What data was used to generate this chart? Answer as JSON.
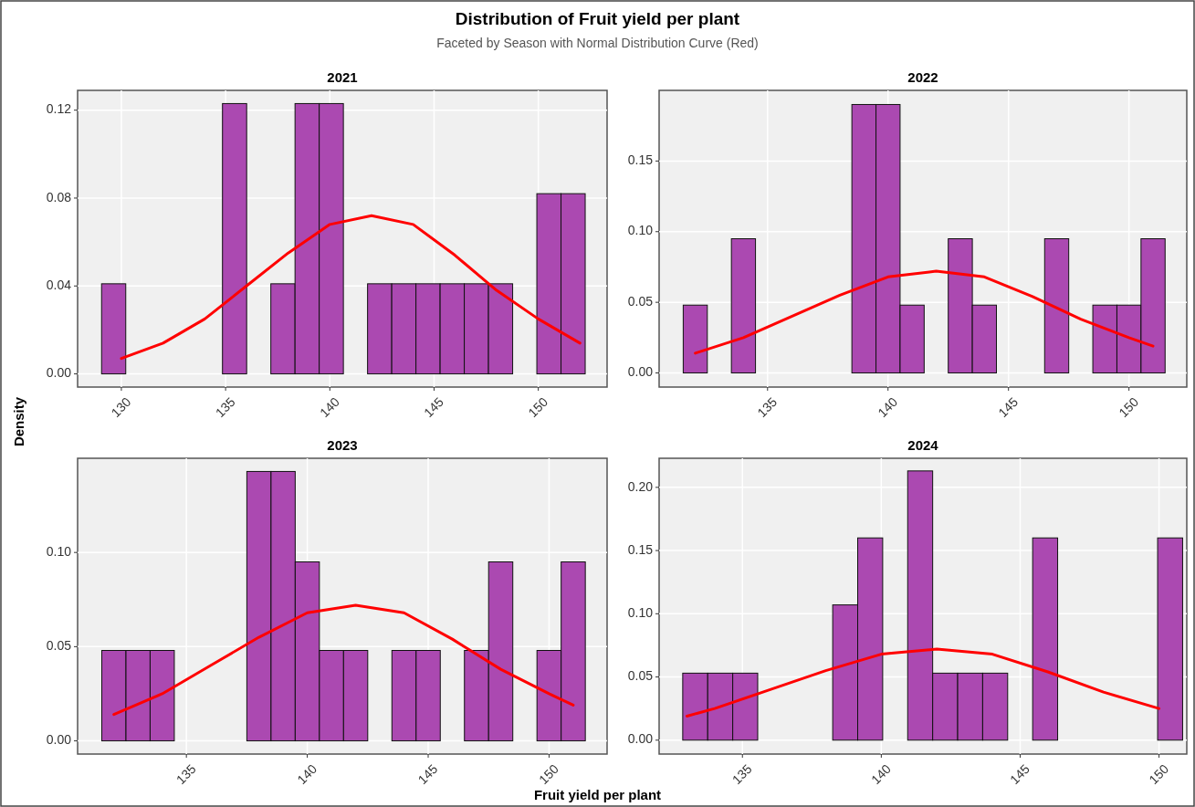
{
  "chart_data": [
    {
      "type": "histogram",
      "title": "2021",
      "ylabel": "Density",
      "annotations": [
        "Distribution of Fruit yield per plant",
        "Faceted by Season with Normal Distribution Curve (Red)"
      ],
      "bins": [
        129.05,
        130.21,
        131.37,
        132.53,
        133.69,
        134.85,
        136.01,
        137.17,
        138.33,
        139.49,
        140.65,
        141.81,
        142.97,
        144.13,
        145.29,
        146.45,
        147.61,
        148.77,
        149.93,
        151.09,
        152.25
      ],
      "series": [
        {
          "color": "#a63fad",
          "values": [
            0.041,
            0,
            0,
            0,
            0,
            0.123,
            0,
            0.041,
            0.123,
            0.123,
            0,
            0.041,
            0.041,
            0.041,
            0.041,
            0.041,
            0.041,
            0,
            0.082,
            0.082
          ]
        },
        {
          "type": "line",
          "color": "#ff0000",
          "x": [
            130,
            132,
            134,
            136,
            138,
            140,
            142,
            144,
            146,
            148,
            150,
            152
          ],
          "values": [
            0.007,
            0.014,
            0.025,
            0.04,
            0.055,
            0.068,
            0.072,
            0.068,
            0.054,
            0.038,
            0.025,
            0.014
          ]
        }
      ],
      "xlim": [
        127.9,
        153.3
      ],
      "ylim": [
        -0.006,
        0.129
      ],
      "xticks": [
        130,
        135,
        140,
        145,
        150
      ],
      "yticks": [
        {
          "value": 0,
          "label": "0.00"
        },
        {
          "value": 0.04,
          "label": "0.04"
        },
        {
          "value": 0.08,
          "label": "0.08"
        },
        {
          "value": 0.12,
          "label": "0.12"
        }
      ],
      "grid": true
    },
    {
      "type": "histogram",
      "title": "2022",
      "bins": [
        131.5,
        132.5,
        133.5,
        134.5,
        135.5,
        136.5,
        137.5,
        138.5,
        139.5,
        140.5,
        141.5,
        142.5,
        143.5,
        144.5,
        145.5,
        146.5,
        147.5,
        148.5,
        149.5,
        150.5,
        151.5
      ],
      "series": [
        {
          "color": "#a63fad",
          "values": [
            0.048,
            0,
            0.095,
            0,
            0,
            0,
            0,
            0.19,
            0.19,
            0.048,
            0,
            0.095,
            0.048,
            0,
            0,
            0.095,
            0,
            0.048,
            0.048,
            0.095
          ]
        },
        {
          "type": "line",
          "color": "#ff0000",
          "x": [
            132,
            134,
            136,
            138,
            140,
            142,
            144,
            146,
            148,
            150,
            151
          ],
          "values": [
            0.014,
            0.025,
            0.04,
            0.055,
            0.068,
            0.072,
            0.068,
            0.054,
            0.038,
            0.025,
            0.019
          ]
        }
      ],
      "xlim": [
        130.5,
        152.4
      ],
      "ylim": [
        -0.01,
        0.2
      ],
      "xticks": [
        135,
        140,
        145,
        150
      ],
      "yticks": [
        {
          "value": 0,
          "label": "0.00"
        },
        {
          "value": 0.05,
          "label": "0.05"
        },
        {
          "value": 0.1,
          "label": "0.10"
        },
        {
          "value": 0.15,
          "label": "0.15"
        }
      ],
      "grid": true
    },
    {
      "type": "histogram",
      "title": "2023",
      "xlabel": "Fruit yield per plant",
      "bins": [
        131.5,
        132.5,
        133.5,
        134.5,
        135.5,
        136.5,
        137.5,
        138.5,
        139.5,
        140.5,
        141.5,
        142.5,
        143.5,
        144.5,
        145.5,
        146.5,
        147.5,
        148.5,
        149.5,
        150.5,
        151.5
      ],
      "series": [
        {
          "color": "#a63fad",
          "values": [
            0.048,
            0.048,
            0.048,
            0,
            0,
            0,
            0.143,
            0.143,
            0.095,
            0.048,
            0.048,
            0,
            0.048,
            0.048,
            0,
            0.048,
            0.095,
            0,
            0.048,
            0.095
          ]
        },
        {
          "type": "line",
          "color": "#ff0000",
          "x": [
            132,
            134,
            136,
            138,
            140,
            142,
            144,
            146,
            148,
            150,
            151
          ],
          "values": [
            0.014,
            0.025,
            0.04,
            0.055,
            0.068,
            0.072,
            0.068,
            0.054,
            0.038,
            0.025,
            0.019
          ]
        }
      ],
      "xlim": [
        130.5,
        152.4
      ],
      "ylim": [
        -0.007,
        0.15
      ],
      "xticks": [
        135,
        140,
        145,
        150
      ],
      "yticks": [
        {
          "value": 0,
          "label": "0.00"
        },
        {
          "value": 0.05,
          "label": "0.05"
        },
        {
          "value": 0.1,
          "label": "0.10"
        }
      ],
      "grid": true
    },
    {
      "type": "histogram",
      "title": "2024",
      "bins": [
        132.85,
        133.75,
        134.65,
        135.55,
        136.45,
        137.35,
        138.25,
        139.15,
        140.05,
        140.95,
        141.85,
        142.75,
        143.65,
        144.55,
        145.45,
        146.35,
        147.25,
        148.15,
        149.05,
        149.95,
        150.85
      ],
      "series": [
        {
          "color": "#a63fad",
          "values": [
            0.053,
            0.053,
            0.053,
            0,
            0,
            0,
            0.107,
            0.16,
            0,
            0.213,
            0.053,
            0.053,
            0.053,
            0,
            0.16,
            0,
            0,
            0,
            0,
            0.16
          ]
        },
        {
          "type": "line",
          "color": "#ff0000",
          "x": [
            133,
            134,
            136,
            138,
            140,
            142,
            144,
            146,
            148,
            150
          ],
          "values": [
            0.019,
            0.025,
            0.04,
            0.055,
            0.068,
            0.072,
            0.068,
            0.054,
            0.038,
            0.025
          ]
        }
      ],
      "xlim": [
        132,
        151
      ],
      "ylim": [
        -0.011,
        0.223
      ],
      "xticks": [
        135,
        140,
        145,
        150
      ],
      "yticks": [
        {
          "value": 0,
          "label": "0.00"
        },
        {
          "value": 0.05,
          "label": "0.05"
        },
        {
          "value": 0.1,
          "label": "0.10"
        },
        {
          "value": 0.15,
          "label": "0.15"
        },
        {
          "value": 0.2,
          "label": "0.20"
        }
      ],
      "grid": true
    }
  ]
}
